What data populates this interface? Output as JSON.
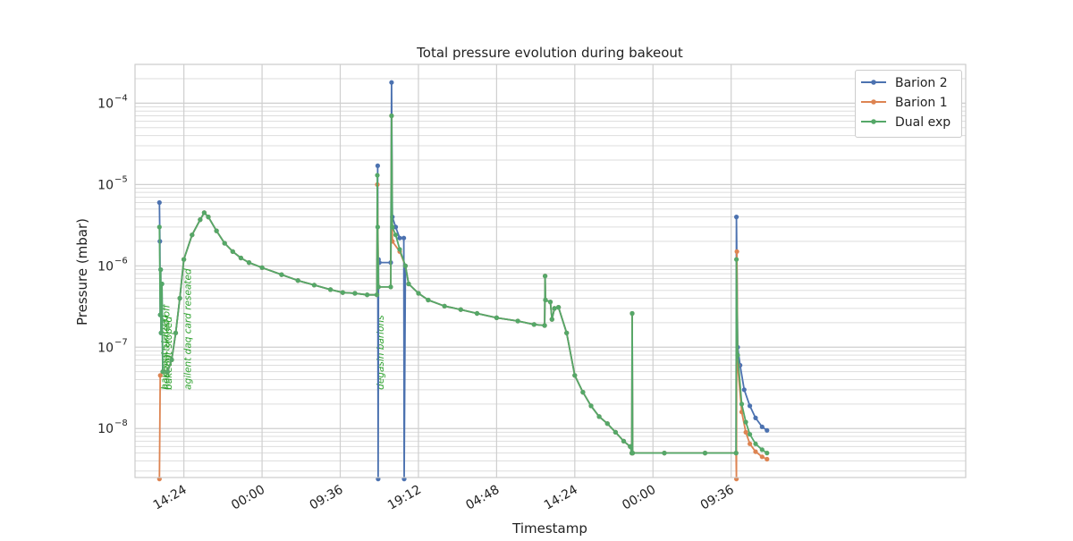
{
  "chart_data": {
    "type": "line",
    "title": "Total pressure evolution during bakeout",
    "xlabel": "Timestamp",
    "ylabel": "Pressure (mbar)",
    "x_unit": "hours",
    "xlim": [
      0,
      102
    ],
    "ylim": [
      2.5e-09,
      0.0003
    ],
    "yscale": "log",
    "grid": true,
    "legend": "top-right",
    "x_ticks": [
      {
        "x": 6.0,
        "label": "14:24"
      },
      {
        "x": 15.6,
        "label": "00:00"
      },
      {
        "x": 25.2,
        "label": "09:36"
      },
      {
        "x": 34.8,
        "label": "19:12"
      },
      {
        "x": 44.4,
        "label": "04:48"
      },
      {
        "x": 54.0,
        "label": "14:24"
      },
      {
        "x": 63.6,
        "label": "00:00"
      },
      {
        "x": 73.2,
        "label": "09:36"
      }
    ],
    "y_ticks": [
      {
        "y": 1e-08,
        "base": "10",
        "exp": "−8"
      },
      {
        "y": 1e-07,
        "base": "10",
        "exp": "−7"
      },
      {
        "y": 1e-06,
        "base": "10",
        "exp": "−6"
      },
      {
        "y": 1e-05,
        "base": "10",
        "exp": "−5"
      },
      {
        "y": 0.0001,
        "base": "10",
        "exp": "−4"
      }
    ],
    "annotations": [
      {
        "x": 3.55,
        "text": "bakeout started",
        "color": "#2ca02c"
      },
      {
        "x": 3.8,
        "text": "heating turned off",
        "color": "#2ca02c"
      },
      {
        "x": 4.05,
        "text": "bakeout stoped",
        "color": "#2ca02c"
      },
      {
        "x": 6.45,
        "text": "agilent daq card reseated",
        "color": "#2ca02c"
      },
      {
        "x": 30.1,
        "text": "degasin barions",
        "color": "#2ca02c"
      }
    ],
    "series": [
      {
        "name": "Barion 2",
        "color": "#4c72b0",
        "points": [
          [
            3.0,
            6e-06
          ],
          [
            3.05,
            2e-06
          ],
          [
            3.1,
            2.5e-07
          ],
          [
            3.15,
            9e-07
          ],
          [
            3.2,
            1.5e-07
          ],
          [
            3.3,
            6e-07
          ],
          [
            3.4,
            5e-08
          ],
          [
            4.0,
            5e-08
          ],
          [
            4.5,
            7e-08
          ],
          [
            5.0,
            1.5e-07
          ],
          [
            5.5,
            4e-07
          ],
          [
            6.0,
            1.2e-06
          ],
          [
            7.0,
            2.4e-06
          ],
          [
            8.0,
            3.7e-06
          ],
          [
            8.5,
            4.5e-06
          ],
          [
            9.0,
            4e-06
          ],
          [
            10.0,
            2.7e-06
          ],
          [
            11.0,
            1.9e-06
          ],
          [
            12.0,
            1.5e-06
          ],
          [
            13.0,
            1.25e-06
          ],
          [
            14.0,
            1.1e-06
          ],
          [
            15.6,
            9.5e-07
          ],
          [
            18.0,
            7.8e-07
          ],
          [
            20.0,
            6.6e-07
          ],
          [
            22.0,
            5.8e-07
          ],
          [
            24.0,
            5.1e-07
          ],
          [
            25.5,
            4.7e-07
          ],
          [
            27.0,
            4.6e-07
          ],
          [
            28.5,
            4.4e-07
          ],
          [
            29.7,
            4.4e-07
          ],
          [
            29.8,
            1.7e-05
          ],
          [
            29.85,
            2.4e-09
          ],
          [
            29.9,
            1.2e-06
          ],
          [
            30.0,
            1.1e-06
          ],
          [
            31.4,
            1.1e-06
          ],
          [
            31.5,
            0.00018
          ],
          [
            31.6,
            4e-06
          ],
          [
            32.0,
            3e-06
          ],
          [
            32.5,
            2.2e-06
          ],
          [
            33.0,
            2.2e-06
          ],
          [
            33.05,
            2.4e-09
          ],
          [
            33.2,
            1e-06
          ],
          [
            33.6,
            6e-07
          ],
          [
            34.8,
            4.6e-07
          ],
          [
            36.0,
            3.8e-07
          ],
          [
            38.0,
            3.2e-07
          ],
          [
            40.0,
            2.9e-07
          ],
          [
            42.0,
            2.6e-07
          ],
          [
            44.4,
            2.3e-07
          ],
          [
            47.0,
            2.1e-07
          ],
          [
            49.0,
            1.9e-07
          ],
          [
            50.3,
            1.85e-07
          ],
          [
            50.35,
            7.5e-07
          ],
          [
            50.4,
            3.8e-07
          ],
          [
            51.0,
            3.6e-07
          ],
          [
            51.2,
            2.2e-07
          ],
          [
            51.5,
            3e-07
          ],
          [
            52.0,
            3.1e-07
          ],
          [
            53.0,
            1.5e-07
          ],
          [
            54.0,
            4.5e-08
          ],
          [
            55.0,
            2.8e-08
          ],
          [
            56.0,
            1.9e-08
          ],
          [
            57.0,
            1.4e-08
          ],
          [
            58.0,
            1.15e-08
          ],
          [
            59.0,
            9e-09
          ],
          [
            60.0,
            7e-09
          ],
          [
            60.8,
            6e-09
          ],
          [
            61.0,
            5e-09
          ],
          [
            61.05,
            2.6e-07
          ],
          [
            61.1,
            5e-09
          ],
          [
            65.0,
            5e-09
          ],
          [
            70.0,
            5e-09
          ],
          [
            73.8,
            5e-09
          ],
          [
            73.85,
            4e-06
          ],
          [
            74.0,
            1e-07
          ],
          [
            74.3,
            6e-08
          ],
          [
            74.8,
            3e-08
          ],
          [
            75.5,
            1.9e-08
          ],
          [
            76.2,
            1.35e-08
          ],
          [
            77.0,
            1.05e-08
          ],
          [
            77.6,
            9.5e-09
          ]
        ]
      },
      {
        "name": "Barion 1",
        "color": "#dd8452",
        "points": [
          [
            3.0,
            2.4e-09
          ],
          [
            3.1,
            4.5e-08
          ],
          [
            3.4,
            5e-08
          ],
          [
            4.0,
            5e-08
          ],
          [
            4.5,
            7e-08
          ],
          [
            5.0,
            1.5e-07
          ],
          [
            5.5,
            4e-07
          ],
          [
            6.0,
            1.2e-06
          ],
          [
            7.0,
            2.4e-06
          ],
          [
            8.0,
            3.7e-06
          ],
          [
            8.5,
            4.5e-06
          ],
          [
            9.0,
            4e-06
          ],
          [
            10.0,
            2.7e-06
          ],
          [
            11.0,
            1.9e-06
          ],
          [
            12.0,
            1.5e-06
          ],
          [
            13.0,
            1.25e-06
          ],
          [
            14.0,
            1.1e-06
          ],
          [
            15.6,
            9.5e-07
          ],
          [
            18.0,
            7.8e-07
          ],
          [
            20.0,
            6.6e-07
          ],
          [
            22.0,
            5.8e-07
          ],
          [
            24.0,
            5.1e-07
          ],
          [
            25.5,
            4.7e-07
          ],
          [
            27.0,
            4.6e-07
          ],
          [
            28.5,
            4.4e-07
          ],
          [
            29.7,
            4.4e-07
          ],
          [
            29.75,
            1e-05
          ],
          [
            29.9,
            5.5e-07
          ],
          [
            31.4,
            5.5e-07
          ],
          [
            31.5,
            7e-05
          ],
          [
            31.6,
            2e-06
          ],
          [
            32.5,
            1.5e-06
          ],
          [
            33.2,
            1e-06
          ],
          [
            33.6,
            6e-07
          ],
          [
            34.8,
            4.6e-07
          ],
          [
            36.0,
            3.8e-07
          ],
          [
            38.0,
            3.2e-07
          ],
          [
            40.0,
            2.9e-07
          ],
          [
            42.0,
            2.6e-07
          ],
          [
            44.4,
            2.3e-07
          ],
          [
            47.0,
            2.1e-07
          ],
          [
            49.0,
            1.9e-07
          ],
          [
            50.3,
            1.85e-07
          ],
          [
            50.35,
            7.5e-07
          ],
          [
            50.4,
            3.8e-07
          ],
          [
            51.0,
            3.6e-07
          ],
          [
            51.2,
            2.2e-07
          ],
          [
            51.5,
            3e-07
          ],
          [
            52.0,
            3.1e-07
          ],
          [
            53.0,
            1.5e-07
          ],
          [
            54.0,
            4.5e-08
          ],
          [
            55.0,
            2.8e-08
          ],
          [
            56.0,
            1.9e-08
          ],
          [
            57.0,
            1.4e-08
          ],
          [
            58.0,
            1.15e-08
          ],
          [
            59.0,
            9e-09
          ],
          [
            60.0,
            7e-09
          ],
          [
            60.8,
            6e-09
          ],
          [
            61.0,
            5e-09
          ],
          [
            61.05,
            2.6e-07
          ],
          [
            61.1,
            5e-09
          ],
          [
            65.0,
            5e-09
          ],
          [
            70.0,
            5e-09
          ],
          [
            73.8,
            5e-09
          ],
          [
            73.85,
            2.4e-09
          ],
          [
            73.9,
            1.5e-06
          ],
          [
            74.0,
            6e-08
          ],
          [
            74.5,
            1.6e-08
          ],
          [
            75.0,
            9e-09
          ],
          [
            75.5,
            6.5e-09
          ],
          [
            76.2,
            5.2e-09
          ],
          [
            77.0,
            4.5e-09
          ],
          [
            77.6,
            4.2e-09
          ]
        ]
      },
      {
        "name": "Dual exp",
        "color": "#55a868",
        "points": [
          [
            3.0,
            3e-06
          ],
          [
            3.1,
            2.5e-07
          ],
          [
            3.15,
            9e-07
          ],
          [
            3.2,
            1.5e-07
          ],
          [
            3.3,
            6e-07
          ],
          [
            3.4,
            5e-08
          ],
          [
            4.0,
            5e-08
          ],
          [
            4.5,
            7e-08
          ],
          [
            5.0,
            1.5e-07
          ],
          [
            5.5,
            4e-07
          ],
          [
            6.0,
            1.2e-06
          ],
          [
            7.0,
            2.4e-06
          ],
          [
            8.0,
            3.7e-06
          ],
          [
            8.5,
            4.5e-06
          ],
          [
            9.0,
            4e-06
          ],
          [
            10.0,
            2.7e-06
          ],
          [
            11.0,
            1.9e-06
          ],
          [
            12.0,
            1.5e-06
          ],
          [
            13.0,
            1.25e-06
          ],
          [
            14.0,
            1.1e-06
          ],
          [
            15.6,
            9.5e-07
          ],
          [
            18.0,
            7.8e-07
          ],
          [
            20.0,
            6.6e-07
          ],
          [
            22.0,
            5.8e-07
          ],
          [
            24.0,
            5.1e-07
          ],
          [
            25.5,
            4.7e-07
          ],
          [
            27.0,
            4.6e-07
          ],
          [
            28.5,
            4.4e-07
          ],
          [
            29.7,
            4.4e-07
          ],
          [
            29.75,
            1.3e-05
          ],
          [
            29.8,
            3e-06
          ],
          [
            29.9,
            5.5e-07
          ],
          [
            31.4,
            5.5e-07
          ],
          [
            31.5,
            7e-05
          ],
          [
            31.6,
            3e-06
          ],
          [
            32.0,
            2.4e-06
          ],
          [
            32.5,
            1.6e-06
          ],
          [
            33.2,
            1e-06
          ],
          [
            33.6,
            6e-07
          ],
          [
            34.8,
            4.6e-07
          ],
          [
            36.0,
            3.8e-07
          ],
          [
            38.0,
            3.2e-07
          ],
          [
            40.0,
            2.9e-07
          ],
          [
            42.0,
            2.6e-07
          ],
          [
            44.4,
            2.3e-07
          ],
          [
            47.0,
            2.1e-07
          ],
          [
            49.0,
            1.9e-07
          ],
          [
            50.3,
            1.85e-07
          ],
          [
            50.35,
            7.5e-07
          ],
          [
            50.4,
            3.8e-07
          ],
          [
            51.0,
            3.6e-07
          ],
          [
            51.2,
            2.2e-07
          ],
          [
            51.5,
            3e-07
          ],
          [
            52.0,
            3.1e-07
          ],
          [
            53.0,
            1.5e-07
          ],
          [
            54.0,
            4.5e-08
          ],
          [
            55.0,
            2.8e-08
          ],
          [
            56.0,
            1.9e-08
          ],
          [
            57.0,
            1.4e-08
          ],
          [
            58.0,
            1.15e-08
          ],
          [
            59.0,
            9e-09
          ],
          [
            60.0,
            7e-09
          ],
          [
            60.8,
            6e-09
          ],
          [
            61.0,
            5e-09
          ],
          [
            61.05,
            2.6e-07
          ],
          [
            61.1,
            5e-09
          ],
          [
            65.0,
            5e-09
          ],
          [
            70.0,
            5e-09
          ],
          [
            73.8,
            5e-09
          ],
          [
            73.85,
            1.2e-06
          ],
          [
            74.0,
            8e-08
          ],
          [
            74.5,
            2e-08
          ],
          [
            75.0,
            1.2e-08
          ],
          [
            75.5,
            8.5e-09
          ],
          [
            76.2,
            6.5e-09
          ],
          [
            77.0,
            5.5e-09
          ],
          [
            77.6,
            5e-09
          ]
        ]
      }
    ]
  }
}
